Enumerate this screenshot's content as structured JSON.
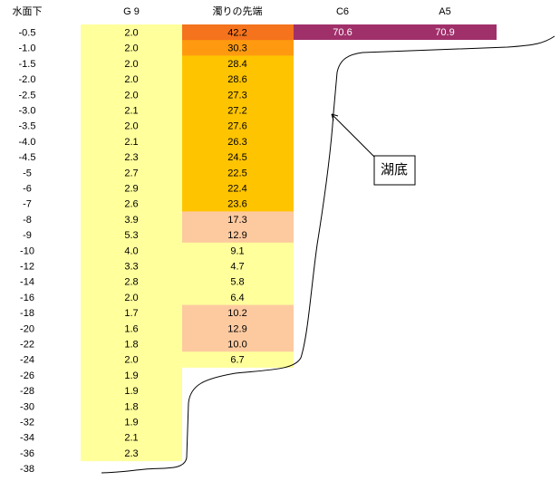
{
  "header": {
    "depth": "水面下",
    "g9": "G 9",
    "turbidity": "濁りの先端",
    "c6": "C6",
    "a5": "A5"
  },
  "first_row_extra": {
    "c6": "70.6",
    "a5": "70.9"
  },
  "annotation": "湖底",
  "table": {
    "rows": [
      {
        "depth": "-0.5",
        "g9": "2.0",
        "turbidity": "42.2",
        "color": "#f4731c"
      },
      {
        "depth": "-1.0",
        "g9": "2.0",
        "turbidity": "30.3",
        "color": "#ff9a10"
      },
      {
        "depth": "-1.5",
        "g9": "2.0",
        "turbidity": "28.4",
        "color": "#ffc400"
      },
      {
        "depth": "-2.0",
        "g9": "2.0",
        "turbidity": "28.6",
        "color": "#ffc400"
      },
      {
        "depth": "-2.5",
        "g9": "2.0",
        "turbidity": "27.3",
        "color": "#ffc400"
      },
      {
        "depth": "-3.0",
        "g9": "2.1",
        "turbidity": "27.2",
        "color": "#ffc400"
      },
      {
        "depth": "-3.5",
        "g9": "2.0",
        "turbidity": "27.6",
        "color": "#ffc400"
      },
      {
        "depth": "-4.0",
        "g9": "2.1",
        "turbidity": "26.3",
        "color": "#ffc400"
      },
      {
        "depth": "-4.5",
        "g9": "2.3",
        "turbidity": "24.5",
        "color": "#ffc400"
      },
      {
        "depth": "-5",
        "g9": "2.7",
        "turbidity": "22.5",
        "color": "#ffc400"
      },
      {
        "depth": "-6",
        "g9": "2.9",
        "turbidity": "22.4",
        "color": "#ffc400"
      },
      {
        "depth": "-7",
        "g9": "2.6",
        "turbidity": "23.6",
        "color": "#ffc400"
      },
      {
        "depth": "-8",
        "g9": "3.9",
        "turbidity": "17.3",
        "color": "#fdcaa0"
      },
      {
        "depth": "-9",
        "g9": "5.3",
        "turbidity": "12.9",
        "color": "#fdcaa0"
      },
      {
        "depth": "-10",
        "g9": "4.0",
        "turbidity": "9.1",
        "color": "#ffff9c"
      },
      {
        "depth": "-12",
        "g9": "3.3",
        "turbidity": "4.7",
        "color": "#ffff9c"
      },
      {
        "depth": "-14",
        "g9": "2.8",
        "turbidity": "5.8",
        "color": "#ffff9c"
      },
      {
        "depth": "-16",
        "g9": "2.0",
        "turbidity": "6.4",
        "color": "#ffff9c"
      },
      {
        "depth": "-18",
        "g9": "1.7",
        "turbidity": "10.2",
        "color": "#fdcaa0"
      },
      {
        "depth": "-20",
        "g9": "1.6",
        "turbidity": "12.9",
        "color": "#fdcaa0"
      },
      {
        "depth": "-22",
        "g9": "1.8",
        "turbidity": "10.0",
        "color": "#fdcaa0"
      },
      {
        "depth": "-24",
        "g9": "2.0",
        "turbidity": "6.7",
        "color": "#ffff9c"
      },
      {
        "depth": "-26",
        "g9": "1.9"
      },
      {
        "depth": "-28",
        "g9": "1.9"
      },
      {
        "depth": "-30",
        "g9": "1.8"
      },
      {
        "depth": "-32",
        "g9": "1.9"
      },
      {
        "depth": "-34",
        "g9": "2.1"
      },
      {
        "depth": "-36",
        "g9": "2.3"
      },
      {
        "depth": "-38"
      }
    ]
  }
}
